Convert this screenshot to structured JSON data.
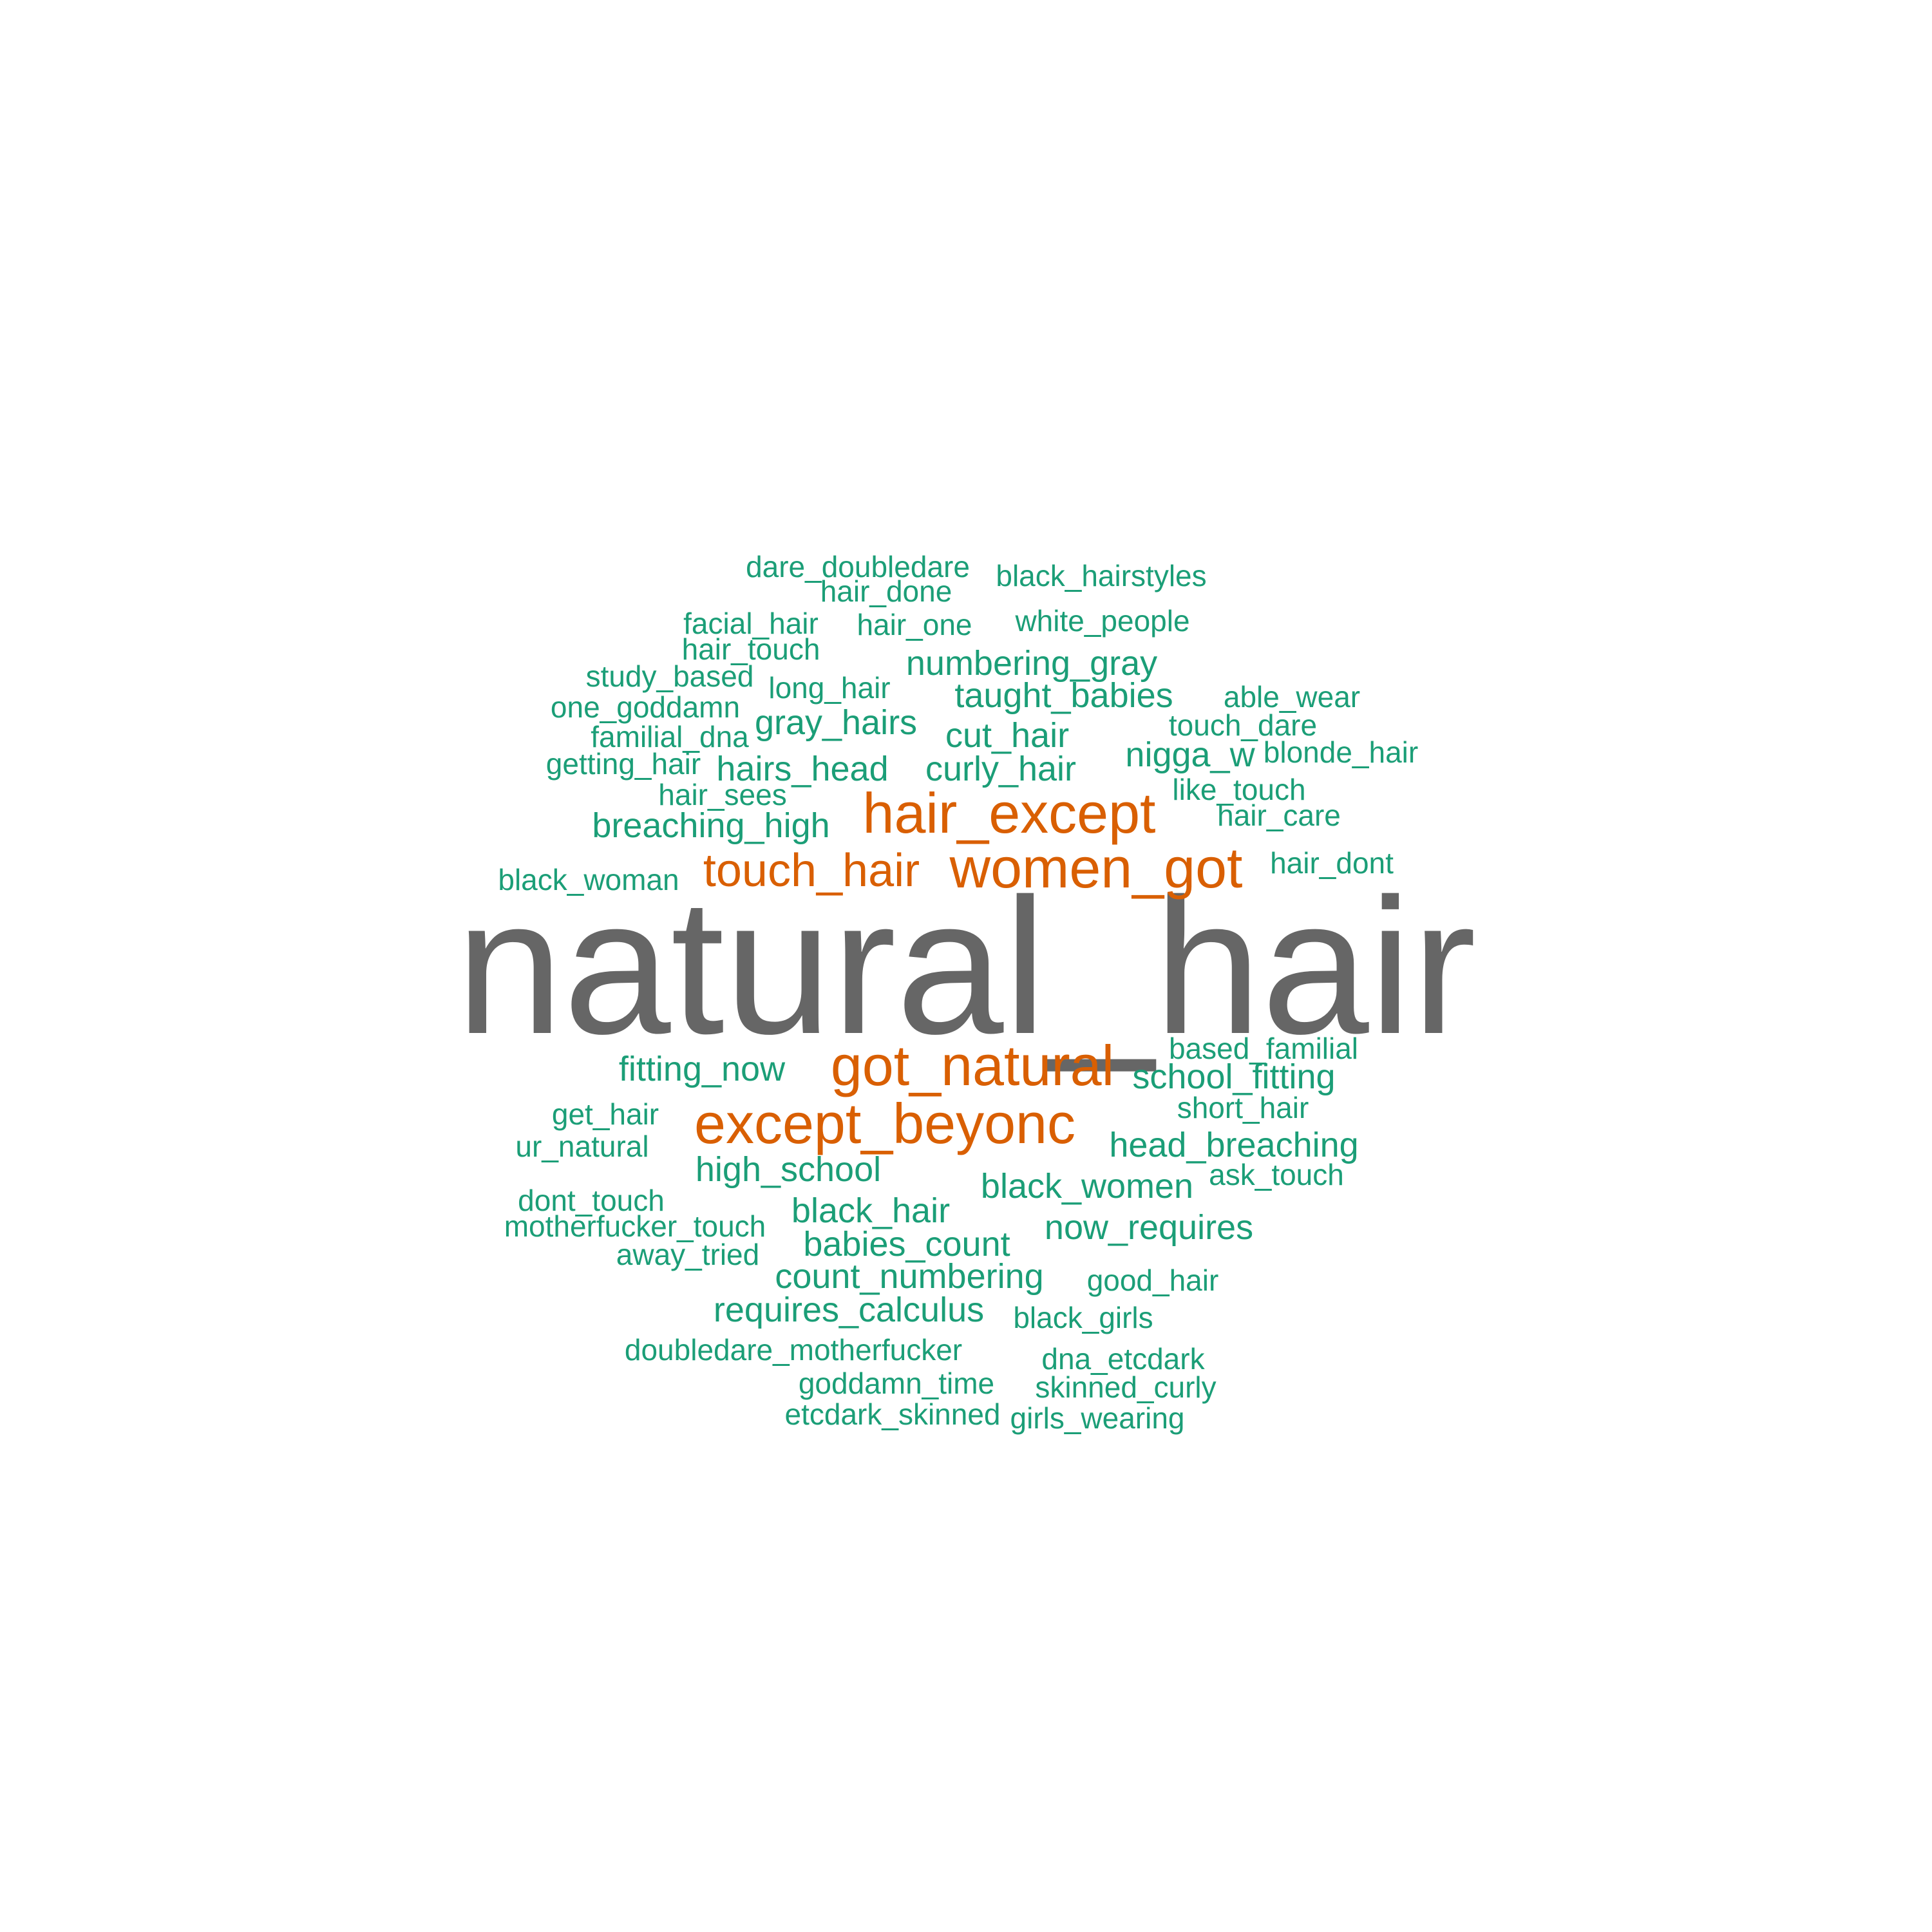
{
  "palette": {
    "top": "#666666",
    "mid": "#D95F02",
    "low": "#1B9E77"
  },
  "words": [
    {
      "text": "natural_hair",
      "tier": "top"
    },
    {
      "text": "hair_except",
      "tier": "mid"
    },
    {
      "text": "women_got",
      "tier": "mid"
    },
    {
      "text": "touch_hair",
      "tier": "mid"
    },
    {
      "text": "got_natural",
      "tier": "mid"
    },
    {
      "text": "except_beyonc",
      "tier": "mid"
    },
    {
      "text": "dare_doubledare",
      "tier": "low"
    },
    {
      "text": "hair_done",
      "tier": "low"
    },
    {
      "text": "black_hairstyles",
      "tier": "low"
    },
    {
      "text": "facial_hair",
      "tier": "low"
    },
    {
      "text": "hair_one",
      "tier": "low"
    },
    {
      "text": "white_people",
      "tier": "low"
    },
    {
      "text": "hair_touch",
      "tier": "low"
    },
    {
      "text": "numbering_gray",
      "tier": "low"
    },
    {
      "text": "study_based",
      "tier": "low"
    },
    {
      "text": "long_hair",
      "tier": "low"
    },
    {
      "text": "taught_babies",
      "tier": "low"
    },
    {
      "text": "able_wear",
      "tier": "low"
    },
    {
      "text": "one_goddamn",
      "tier": "low"
    },
    {
      "text": "gray_hairs",
      "tier": "low"
    },
    {
      "text": "touch_dare",
      "tier": "low"
    },
    {
      "text": "familial_dna",
      "tier": "low"
    },
    {
      "text": "cut_hair",
      "tier": "low"
    },
    {
      "text": "nigga_w",
      "tier": "low"
    },
    {
      "text": "blonde_hair",
      "tier": "low"
    },
    {
      "text": "getting_hair",
      "tier": "low"
    },
    {
      "text": "hairs_head",
      "tier": "low"
    },
    {
      "text": "curly_hair",
      "tier": "low"
    },
    {
      "text": "hair_sees",
      "tier": "low"
    },
    {
      "text": "like_touch",
      "tier": "low"
    },
    {
      "text": "hair_care",
      "tier": "low"
    },
    {
      "text": "breaching_high",
      "tier": "low"
    },
    {
      "text": "hair_dont",
      "tier": "low"
    },
    {
      "text": "black_woman",
      "tier": "low"
    },
    {
      "text": "based_familial",
      "tier": "low"
    },
    {
      "text": "fitting_now",
      "tier": "low"
    },
    {
      "text": "school_fitting",
      "tier": "low"
    },
    {
      "text": "short_hair",
      "tier": "low"
    },
    {
      "text": "get_hair",
      "tier": "low"
    },
    {
      "text": "head_breaching",
      "tier": "low"
    },
    {
      "text": "ur_natural",
      "tier": "low"
    },
    {
      "text": "high_school",
      "tier": "low"
    },
    {
      "text": "ask_touch",
      "tier": "low"
    },
    {
      "text": "black_women",
      "tier": "low"
    },
    {
      "text": "dont_touch",
      "tier": "low"
    },
    {
      "text": "black_hair",
      "tier": "low"
    },
    {
      "text": "motherfucker_touch",
      "tier": "low"
    },
    {
      "text": "now_requires",
      "tier": "low"
    },
    {
      "text": "babies_count",
      "tier": "low"
    },
    {
      "text": "away_tried",
      "tier": "low"
    },
    {
      "text": "count_numbering",
      "tier": "low"
    },
    {
      "text": "good_hair",
      "tier": "low"
    },
    {
      "text": "requires_calculus",
      "tier": "low"
    },
    {
      "text": "black_girls",
      "tier": "low"
    },
    {
      "text": "doubledare_motherfucker",
      "tier": "low"
    },
    {
      "text": "dna_etcdark",
      "tier": "low"
    },
    {
      "text": "goddamn_time",
      "tier": "low"
    },
    {
      "text": "skinned_curly",
      "tier": "low"
    },
    {
      "text": "etcdark_skinned",
      "tier": "low"
    },
    {
      "text": "girls_wearing",
      "tier": "low"
    }
  ]
}
